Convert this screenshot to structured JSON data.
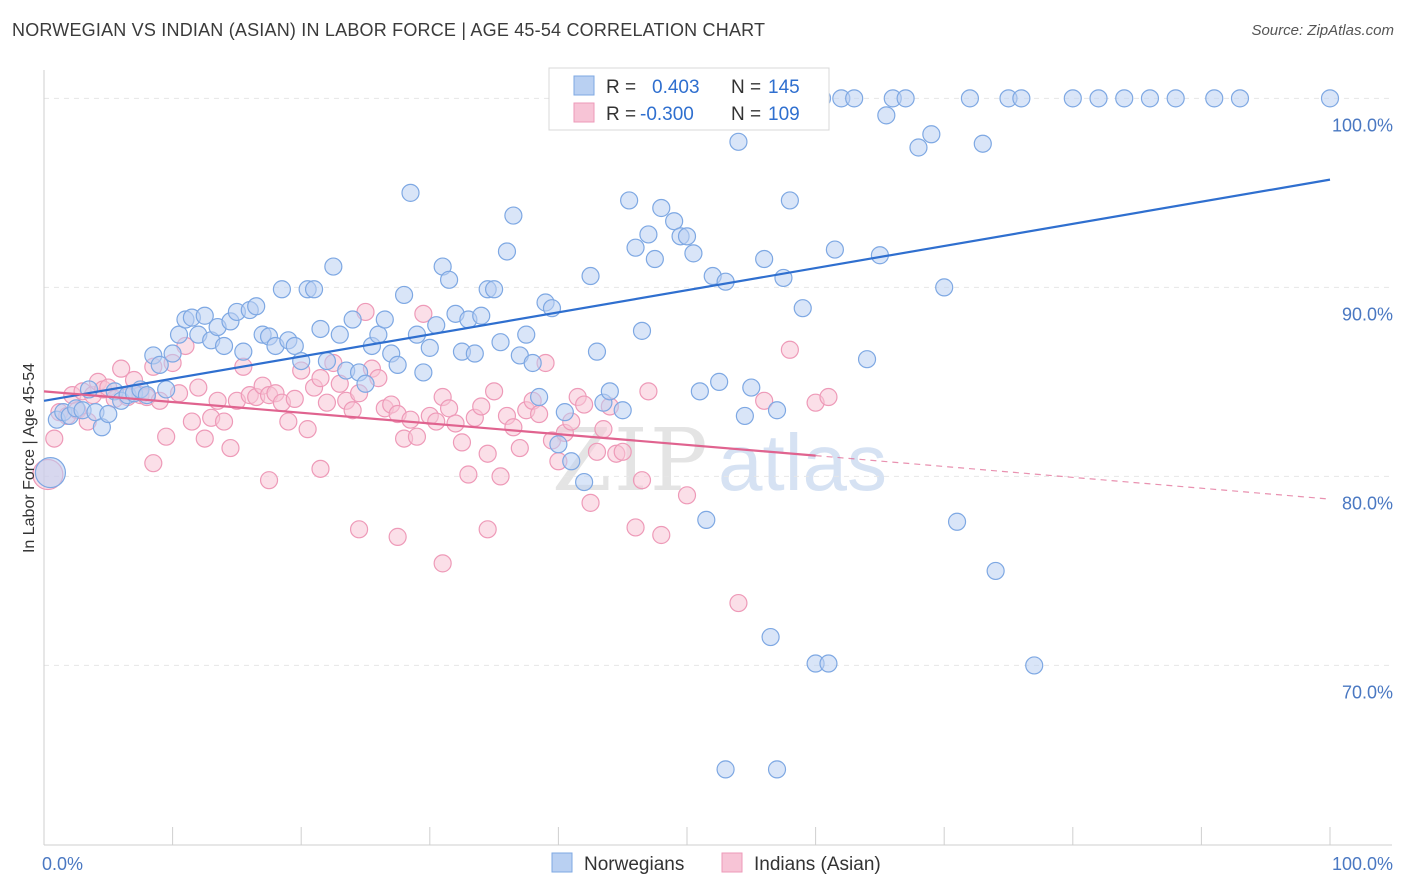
{
  "header": {
    "title": "NORWEGIAN VS INDIAN (ASIAN) IN LABOR FORCE | AGE 45-54 CORRELATION CHART",
    "source": "Source: ZipAtlas.com"
  },
  "chart_data": {
    "type": "scatter",
    "title": "NORWEGIAN VS INDIAN (ASIAN) IN LABOR FORCE | AGE 45-54 CORRELATION CHART",
    "ylabel": "In Labor Force | Age 45-54",
    "xlabel": "",
    "xlim": [
      0,
      100
    ],
    "ylim": [
      60.5,
      101.5
    ],
    "x_tick_labels": [
      {
        "value": 0,
        "label": "0.0%"
      },
      {
        "value": 100,
        "label": "100.0%"
      }
    ],
    "y_tick_labels": [
      {
        "value": 100,
        "label": "100.0%"
      },
      {
        "value": 90,
        "label": "90.0%"
      },
      {
        "value": 80,
        "label": "80.0%"
      },
      {
        "value": 70,
        "label": "70.0%"
      }
    ],
    "grid": true,
    "legend_position": "top-center",
    "watermark": {
      "zip": "ZIP",
      "atlas": "atlas"
    },
    "stats_legend": [
      {
        "r_label": "R =",
        "r_value": "0.403",
        "n_label": "N =",
        "n_value": "145"
      },
      {
        "r_label": "R =",
        "r_value": "-0.300",
        "n_label": "N =",
        "n_value": "109"
      }
    ],
    "series": [
      {
        "name": "Norwegians",
        "color": "#7ea8e3",
        "fill": "#b9d0f2",
        "line_color": "#2f6fcf",
        "trend": {
          "x0": 0,
          "y0": 84.0,
          "x1": 100,
          "y1": 95.7,
          "dashed_from": null
        },
        "points": [
          [
            0.5,
            80.2
          ],
          [
            1,
            83
          ],
          [
            1.5,
            83.4
          ],
          [
            2,
            83.2
          ],
          [
            2.5,
            83.6
          ],
          [
            3,
            83.5
          ],
          [
            3.5,
            84.6
          ],
          [
            4,
            83.4
          ],
          [
            4.5,
            82.6
          ],
          [
            5,
            83.3
          ],
          [
            5.5,
            84.5
          ],
          [
            6,
            84.0
          ],
          [
            6.5,
            84.3
          ],
          [
            7,
            84.4
          ],
          [
            7.5,
            84.6
          ],
          [
            8,
            84.3
          ],
          [
            8.5,
            86.4
          ],
          [
            9,
            85.9
          ],
          [
            9.5,
            84.6
          ],
          [
            10,
            86.5
          ],
          [
            10.5,
            87.5
          ],
          [
            11,
            88.3
          ],
          [
            11.5,
            88.4
          ],
          [
            12,
            87.5
          ],
          [
            12.5,
            88.5
          ],
          [
            13,
            87.2
          ],
          [
            13.5,
            87.9
          ],
          [
            14,
            86.9
          ],
          [
            14.5,
            88.2
          ],
          [
            15,
            88.7
          ],
          [
            15.5,
            86.6
          ],
          [
            16,
            88.8
          ],
          [
            16.5,
            89.0
          ],
          [
            17,
            87.5
          ],
          [
            17.5,
            87.4
          ],
          [
            18,
            86.9
          ],
          [
            18.5,
            89.9
          ],
          [
            19,
            87.2
          ],
          [
            19.5,
            86.9
          ],
          [
            20,
            86.1
          ],
          [
            20.5,
            89.9
          ],
          [
            21,
            89.9
          ],
          [
            21.5,
            87.8
          ],
          [
            22,
            86.1
          ],
          [
            22.5,
            91.1
          ],
          [
            23,
            87.5
          ],
          [
            23.5,
            85.6
          ],
          [
            24,
            88.3
          ],
          [
            24.5,
            85.5
          ],
          [
            25,
            84.9
          ],
          [
            25.5,
            86.9
          ],
          [
            26,
            87.5
          ],
          [
            26.5,
            88.3
          ],
          [
            27,
            86.5
          ],
          [
            27.5,
            85.9
          ],
          [
            28,
            89.6
          ],
          [
            28.5,
            95
          ],
          [
            29,
            87.5
          ],
          [
            29.5,
            85.5
          ],
          [
            30,
            86.8
          ],
          [
            30.5,
            88.0
          ],
          [
            31,
            91.1
          ],
          [
            31.5,
            90.4
          ],
          [
            32,
            88.6
          ],
          [
            32.5,
            86.6
          ],
          [
            33,
            88.3
          ],
          [
            33.5,
            86.5
          ],
          [
            34,
            88.5
          ],
          [
            34.5,
            89.9
          ],
          [
            35,
            89.9
          ],
          [
            35.5,
            87.1
          ],
          [
            36,
            91.9
          ],
          [
            36.5,
            93.8
          ],
          [
            37,
            86.4
          ],
          [
            37.5,
            87.5
          ],
          [
            38,
            86
          ],
          [
            38.5,
            84.2
          ],
          [
            39,
            89.2
          ],
          [
            39.5,
            88.9
          ],
          [
            40,
            81.7
          ],
          [
            40.5,
            83.4
          ],
          [
            41,
            80.8
          ],
          [
            42,
            79.7
          ],
          [
            42.5,
            90.6
          ],
          [
            43,
            86.6
          ],
          [
            43.5,
            83.9
          ],
          [
            44,
            84.5
          ],
          [
            45,
            83.5
          ],
          [
            45.5,
            94.6
          ],
          [
            46,
            92.1
          ],
          [
            46.5,
            87.7
          ],
          [
            47,
            92.8
          ],
          [
            47.5,
            91.5
          ],
          [
            48,
            94.2
          ],
          [
            49,
            93.5
          ],
          [
            49.5,
            92.7
          ],
          [
            50,
            92.7
          ],
          [
            50.5,
            91.8
          ],
          [
            51,
            84.5
          ],
          [
            51.5,
            77.7
          ],
          [
            52,
            90.6
          ],
          [
            52.5,
            85.0
          ],
          [
            53,
            90.3
          ],
          [
            54,
            97.7
          ],
          [
            54.5,
            83.2
          ],
          [
            55,
            84.7
          ],
          [
            56,
            91.5
          ],
          [
            56.5,
            71.5
          ],
          [
            57,
            83.5
          ],
          [
            57.5,
            90.5
          ],
          [
            58,
            94.6
          ],
          [
            58.5,
            100
          ],
          [
            59,
            88.9
          ],
          [
            60,
            70.1
          ],
          [
            60.5,
            100
          ],
          [
            61,
            70.1
          ],
          [
            61.5,
            92
          ],
          [
            62,
            100
          ],
          [
            63,
            100
          ],
          [
            64,
            86.2
          ],
          [
            65,
            91.7
          ],
          [
            65.5,
            99.1
          ],
          [
            66,
            100
          ],
          [
            67,
            100
          ],
          [
            68,
            97.4
          ],
          [
            69,
            98.1
          ],
          [
            70,
            90.0
          ],
          [
            71,
            77.6
          ],
          [
            72,
            100
          ],
          [
            73,
            97.6
          ],
          [
            74,
            75.0
          ],
          [
            75,
            100
          ],
          [
            76,
            100
          ],
          [
            77,
            70.0
          ],
          [
            80,
            100
          ],
          [
            82,
            100
          ],
          [
            84,
            100
          ],
          [
            86,
            100
          ],
          [
            88,
            100
          ],
          [
            91,
            100
          ],
          [
            93,
            100
          ],
          [
            100,
            100
          ],
          [
            53,
            64.5
          ],
          [
            57,
            64.5
          ]
        ]
      },
      {
        "name": "Indians (Asian)",
        "color": "#ee9ab8",
        "fill": "#f7c4d6",
        "line_color": "#e0638f",
        "trend": {
          "x0": 0,
          "y0": 84.5,
          "x1": 60,
          "y1": 81.1,
          "dashed_to": 100,
          "dashed_y": 78.8
        },
        "points": [
          [
            0.3,
            80.1
          ],
          [
            0.8,
            82.0
          ],
          [
            1.2,
            83.4
          ],
          [
            1.8,
            83.2
          ],
          [
            2.2,
            84.3
          ],
          [
            2.6,
            83.5
          ],
          [
            3,
            84.5
          ],
          [
            3.4,
            82.9
          ],
          [
            3.8,
            84.3
          ],
          [
            4.2,
            85
          ],
          [
            4.6,
            84.6
          ],
          [
            5,
            84.7
          ],
          [
            5.5,
            84.1
          ],
          [
            6,
            85.7
          ],
          [
            6.5,
            84.2
          ],
          [
            7,
            85.1
          ],
          [
            7.5,
            84.3
          ],
          [
            8,
            84.2
          ],
          [
            8.5,
            85.8
          ],
          [
            9,
            84.0
          ],
          [
            9.5,
            82.1
          ],
          [
            10,
            86.0
          ],
          [
            10.5,
            84.4
          ],
          [
            11,
            86.9
          ],
          [
            11.5,
            82.9
          ],
          [
            12,
            84.7
          ],
          [
            12.5,
            82.0
          ],
          [
            13,
            83.1
          ],
          [
            13.5,
            84.0
          ],
          [
            14,
            82.9
          ],
          [
            14.5,
            81.5
          ],
          [
            15,
            84.0
          ],
          [
            15.5,
            85.8
          ],
          [
            16,
            84.3
          ],
          [
            16.5,
            84.2
          ],
          [
            17,
            84.8
          ],
          [
            17.5,
            84.3
          ],
          [
            18,
            84.4
          ],
          [
            18.5,
            83.9
          ],
          [
            19,
            82.9
          ],
          [
            19.5,
            84.1
          ],
          [
            20,
            85.6
          ],
          [
            20.5,
            82.5
          ],
          [
            21,
            84.7
          ],
          [
            21.5,
            85.2
          ],
          [
            22,
            83.9
          ],
          [
            22.5,
            86.0
          ],
          [
            23,
            84.9
          ],
          [
            23.5,
            84.0
          ],
          [
            24,
            83.5
          ],
          [
            24.5,
            84.4
          ],
          [
            25,
            88.7
          ],
          [
            25.5,
            85.7
          ],
          [
            26,
            85.2
          ],
          [
            26.5,
            83.6
          ],
          [
            27,
            83.8
          ],
          [
            27.5,
            83.3
          ],
          [
            28,
            82.0
          ],
          [
            28.5,
            83.0
          ],
          [
            29,
            82.1
          ],
          [
            29.5,
            88.6
          ],
          [
            30,
            83.2
          ],
          [
            30.5,
            82.9
          ],
          [
            31,
            84.2
          ],
          [
            31.5,
            83.6
          ],
          [
            32,
            82.8
          ],
          [
            32.5,
            81.8
          ],
          [
            33,
            80.1
          ],
          [
            33.5,
            83.1
          ],
          [
            34,
            83.7
          ],
          [
            34.5,
            81.2
          ],
          [
            35,
            84.5
          ],
          [
            35.5,
            80.0
          ],
          [
            36,
            83.2
          ],
          [
            36.5,
            82.6
          ],
          [
            37,
            81.5
          ],
          [
            37.5,
            83.5
          ],
          [
            38,
            84.0
          ],
          [
            38.5,
            83.3
          ],
          [
            39,
            86.0
          ],
          [
            39.5,
            81.9
          ],
          [
            40,
            80.8
          ],
          [
            40.5,
            82.3
          ],
          [
            41,
            82.9
          ],
          [
            41.5,
            84.2
          ],
          [
            42,
            83.8
          ],
          [
            42.5,
            78.6
          ],
          [
            43,
            81.3
          ],
          [
            43.5,
            82.5
          ],
          [
            44,
            83.7
          ],
          [
            44.5,
            81.2
          ],
          [
            45,
            81.3
          ],
          [
            46,
            77.3
          ],
          [
            46.5,
            79.8
          ],
          [
            47,
            84.5
          ],
          [
            48,
            76.9
          ],
          [
            50,
            79.0
          ],
          [
            54,
            73.3
          ],
          [
            56,
            84.0
          ],
          [
            58,
            86.7
          ],
          [
            60,
            83.9
          ],
          [
            61,
            84.2
          ],
          [
            8.5,
            80.7
          ],
          [
            17.5,
            79.8
          ],
          [
            21.5,
            80.4
          ],
          [
            24.5,
            77.2
          ],
          [
            27.5,
            76.8
          ],
          [
            31,
            75.4
          ],
          [
            34.5,
            77.2
          ]
        ]
      }
    ]
  },
  "legend_bottom": [
    {
      "label": "Norwegians"
    },
    {
      "label": "Indians (Asian)"
    }
  ]
}
